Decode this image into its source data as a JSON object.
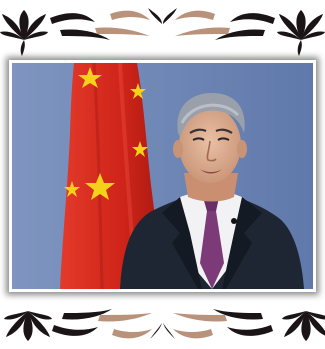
{
  "image": {
    "subject": "man-in-suit-speaking",
    "background_color": "#6d86b4",
    "flag_color": "#d8291f",
    "star_color": "#f5d21a",
    "suit_color": "#1e2633",
    "tie_color": "#7c3a78",
    "shirt_color": "#f2f2f5"
  },
  "ornament": {
    "leaf_dark": "#1a1416",
    "leaf_light": "#b9927c",
    "icons": [
      "lotus-icon",
      "swirl-icon"
    ]
  }
}
